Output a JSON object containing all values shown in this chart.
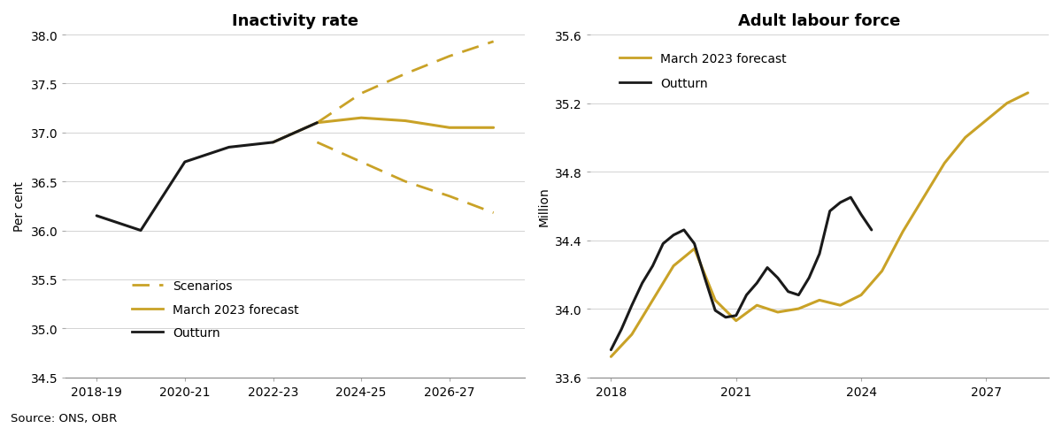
{
  "left_title": "Inactivity rate",
  "right_title": "Adult labour force",
  "left_ylabel": "Per cent",
  "right_ylabel": "Million",
  "source_text": "Source: ONS, OBR",
  "gold_color": "#C9A227",
  "black_color": "#1a1a1a",
  "left_outturn_x": [
    2018.5,
    2019.5,
    2020.5,
    2021.5,
    2022.5,
    2023.5
  ],
  "left_outturn_y": [
    36.15,
    36.0,
    36.7,
    36.85,
    36.9,
    37.1
  ],
  "left_forecast_x": [
    2022.5,
    2023.5,
    2024.5,
    2025.5,
    2026.5,
    2027.5
  ],
  "left_forecast_y": [
    36.9,
    37.1,
    37.15,
    37.12,
    37.05,
    37.05
  ],
  "left_scenario_upper_x": [
    2023.5,
    2024.5,
    2025.5,
    2026.5,
    2027.5
  ],
  "left_scenario_upper_y": [
    37.1,
    37.4,
    37.6,
    37.78,
    37.93
  ],
  "left_scenario_lower_x": [
    2023.5,
    2024.5,
    2025.5,
    2026.5,
    2027.5
  ],
  "left_scenario_lower_y": [
    36.9,
    36.7,
    36.5,
    36.35,
    36.18
  ],
  "left_xlim": [
    2017.8,
    2028.2
  ],
  "left_ylim": [
    34.5,
    38.0
  ],
  "left_yticks": [
    34.5,
    35.0,
    35.5,
    36.0,
    36.5,
    37.0,
    37.5,
    38.0
  ],
  "left_xtick_positions": [
    2018.5,
    2020.5,
    2022.5,
    2024.5,
    2026.5
  ],
  "left_xtick_labels": [
    "2018-19",
    "2020-21",
    "2022-23",
    "2024-25",
    "2026-27"
  ],
  "right_forecast_x": [
    2018.0,
    2018.5,
    2019.0,
    2019.5,
    2020.0,
    2020.5,
    2021.0,
    2021.5,
    2022.0,
    2022.5,
    2023.0,
    2023.5,
    2024.0,
    2024.5,
    2025.0,
    2025.5,
    2026.0,
    2026.5,
    2027.0,
    2027.5,
    2028.0
  ],
  "right_forecast_y": [
    33.72,
    33.85,
    34.05,
    34.25,
    34.35,
    34.05,
    33.93,
    34.02,
    33.98,
    34.0,
    34.05,
    34.02,
    34.08,
    34.22,
    34.45,
    34.65,
    34.85,
    35.0,
    35.1,
    35.2,
    35.26
  ],
  "right_outturn_x": [
    2018.0,
    2018.25,
    2018.5,
    2018.75,
    2019.0,
    2019.25,
    2019.5,
    2019.75,
    2020.0,
    2020.25,
    2020.5,
    2020.75,
    2021.0,
    2021.25,
    2021.5,
    2021.75,
    2022.0,
    2022.25,
    2022.5,
    2022.75,
    2023.0,
    2023.25,
    2023.5,
    2023.75,
    2024.0,
    2024.25
  ],
  "right_outturn_y": [
    33.76,
    33.88,
    34.02,
    34.15,
    34.25,
    34.38,
    34.43,
    34.46,
    34.38,
    34.18,
    33.99,
    33.95,
    33.96,
    34.08,
    34.15,
    34.24,
    34.18,
    34.1,
    34.08,
    34.18,
    34.32,
    34.57,
    34.62,
    34.65,
    34.55,
    34.46
  ],
  "right_xlim": [
    2017.5,
    2028.5
  ],
  "right_ylim": [
    33.6,
    35.6
  ],
  "right_yticks": [
    33.6,
    34.0,
    34.4,
    34.8,
    35.2,
    35.6
  ],
  "right_xtick_positions": [
    2018,
    2021,
    2024,
    2027
  ],
  "right_xtick_labels": [
    "2018",
    "2021",
    "2024",
    "2027"
  ]
}
